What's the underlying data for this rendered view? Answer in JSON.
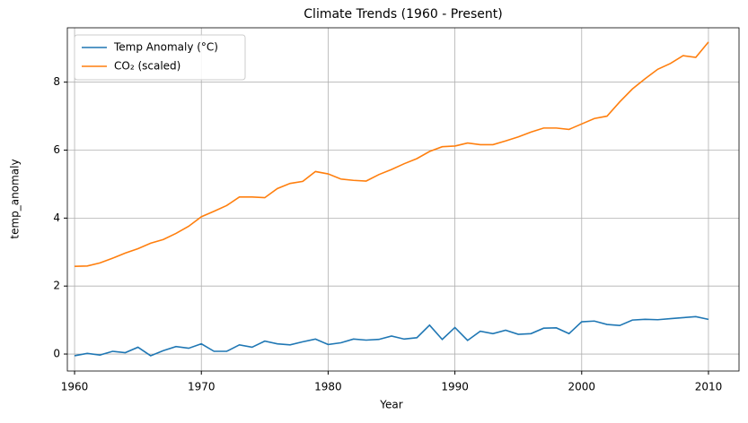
{
  "chart_data": {
    "type": "line",
    "title": "Climate Trends (1960 - Present)",
    "x_label": "Year",
    "y_label": "temp_anomaly",
    "x": [
      1960,
      1961,
      1962,
      1963,
      1964,
      1965,
      1966,
      1967,
      1968,
      1969,
      1970,
      1971,
      1972,
      1973,
      1974,
      1975,
      1976,
      1977,
      1978,
      1979,
      1980,
      1981,
      1982,
      1983,
      1984,
      1985,
      1986,
      1987,
      1988,
      1989,
      1990,
      1991,
      1992,
      1993,
      1994,
      1995,
      1996,
      1997,
      1998,
      1999,
      2000,
      2001,
      2002,
      2003,
      2004,
      2005,
      2006,
      2007,
      2008,
      2009,
      2010
    ],
    "series": [
      {
        "name": "Temp Anomaly (°C)",
        "color": "#1f77b4",
        "values": [
          -0.05,
          0.02,
          -0.03,
          0.08,
          0.04,
          0.2,
          -0.05,
          0.1,
          0.22,
          0.17,
          0.3,
          0.08,
          0.08,
          0.27,
          0.2,
          0.38,
          0.3,
          0.27,
          0.36,
          0.44,
          0.28,
          0.33,
          0.44,
          0.41,
          0.43,
          0.53,
          0.44,
          0.48,
          0.85,
          0.43,
          0.78,
          0.4,
          0.67,
          0.6,
          0.7,
          0.58,
          0.6,
          0.76,
          0.77,
          0.6,
          0.95,
          0.97,
          0.87,
          0.84,
          1.0,
          1.02,
          1.01,
          1.04,
          1.07,
          1.1,
          1.02
        ]
      },
      {
        "name": "CO₂ (scaled)",
        "color": "#ff7f0e",
        "values": [
          2.58,
          2.59,
          2.68,
          2.82,
          2.97,
          3.1,
          3.26,
          3.37,
          3.55,
          3.76,
          4.04,
          4.2,
          4.37,
          4.62,
          4.62,
          4.6,
          4.87,
          5.02,
          5.08,
          5.37,
          5.3,
          5.15,
          5.11,
          5.09,
          5.28,
          5.43,
          5.6,
          5.75,
          5.96,
          6.1,
          6.12,
          6.21,
          6.16,
          6.16,
          6.27,
          6.39,
          6.53,
          6.65,
          6.65,
          6.61,
          6.77,
          6.93,
          7.0,
          7.42,
          7.8,
          8.1,
          8.38,
          8.55,
          8.78,
          8.73,
          9.18
        ]
      }
    ],
    "xlim": [
      1959.43,
      2012.41
    ],
    "xticks": [
      1960,
      1970,
      1980,
      1990,
      2000,
      2010
    ],
    "ylim": [
      -0.5,
      9.6
    ],
    "yticks": [
      0,
      2,
      4,
      6,
      8
    ],
    "grid": true,
    "legend": "upper-left"
  }
}
